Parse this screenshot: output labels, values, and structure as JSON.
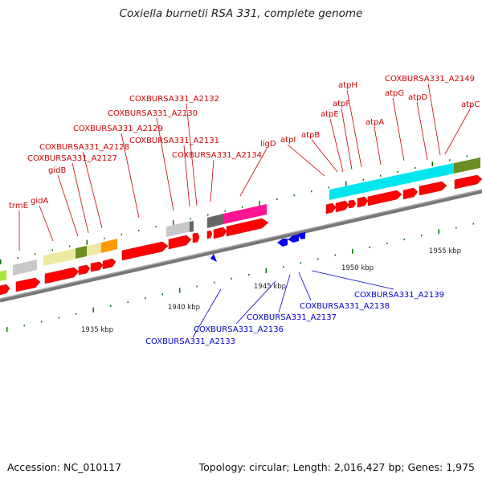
{
  "title": "Coxiella burnetii RSA 331, complete genome",
  "footer": {
    "accession": "Accession: NC_010117",
    "summary": "Topology: circular; Length: 2,016,427 bp; Genes: 1,975"
  },
  "colors": {
    "forward_gene": "#ff0000",
    "reverse_gene": "#0000cc",
    "forward_label": "#cc0000",
    "reverse_label": "#0000cc",
    "backbone": "#888888",
    "tick": "#007700"
  },
  "scale_labels": [
    "1935 kbp",
    "1940 kbp",
    "1945 kbp",
    "1950 kbp",
    "1955 kbp"
  ],
  "forward_labels": [
    "trmE",
    "gidA",
    "gidB",
    "COXBURSA331_A2127",
    "COXBURSA331_A2128",
    "COXBURSA331_A2129",
    "COXBURSA331_A2130",
    "COXBURSA331_A2131",
    "COXBURSA331_A2132",
    "COXBURSA331_A2134",
    "ligD",
    "atpI",
    "atpB",
    "atpE",
    "atpF",
    "atpH",
    "atpA",
    "atpG",
    "atpD",
    "COXBURSA331_A2149",
    "atpC"
  ],
  "reverse_labels": [
    "COXBURSA331_A2133",
    "COXBURSA331_A2136",
    "COXBURSA331_A2137",
    "COXBURSA331_A2138",
    "COXBURSA331_A2139"
  ]
}
